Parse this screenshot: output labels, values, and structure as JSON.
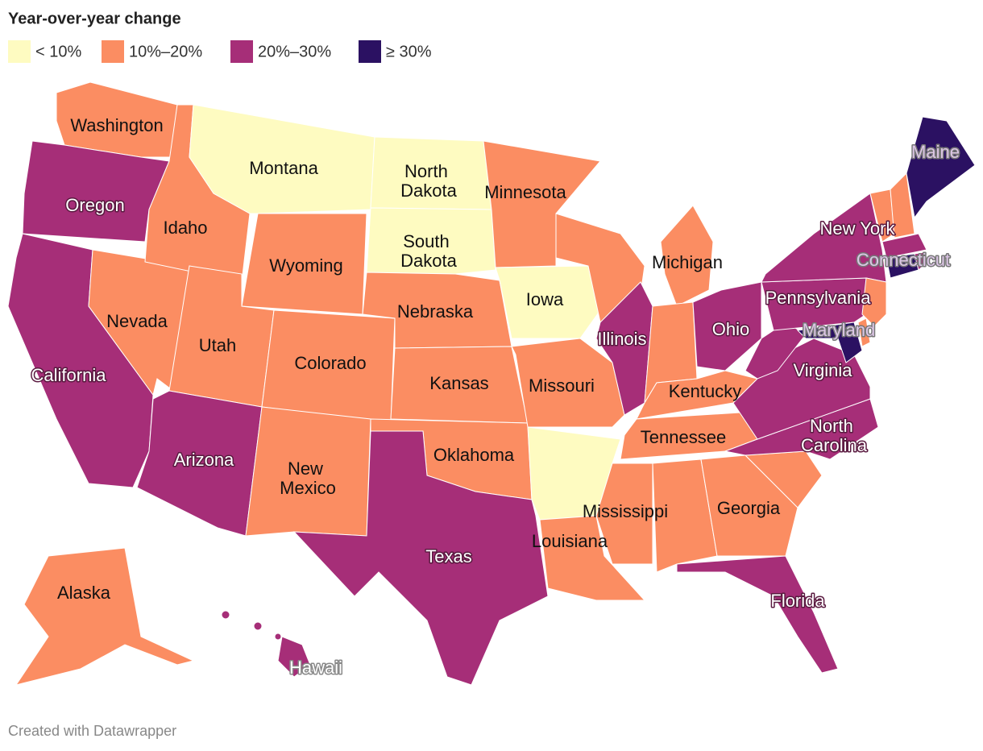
{
  "title": "Year-over-year change",
  "legend": [
    {
      "label": "< 10%",
      "color": "#fefbc1"
    },
    {
      "label": "10%–20%",
      "color": "#fb8d62"
    },
    {
      "label": "20%–30%",
      "color": "#a62e78"
    },
    {
      "label": "≥ 30%",
      "color": "#2b1162"
    }
  ],
  "states": [
    {
      "name": "Washington",
      "color": "#fb8d62"
    },
    {
      "name": "Oregon",
      "color": "#a62e78"
    },
    {
      "name": "California",
      "color": "#a62e78"
    },
    {
      "name": "Nevada",
      "color": "#fb8d62"
    },
    {
      "name": "Idaho",
      "color": "#fb8d62"
    },
    {
      "name": "Montana",
      "color": "#fefbc1"
    },
    {
      "name": "Wyoming",
      "color": "#fb8d62"
    },
    {
      "name": "Utah",
      "color": "#fb8d62"
    },
    {
      "name": "Colorado",
      "color": "#fb8d62"
    },
    {
      "name": "Arizona",
      "color": "#a62e78"
    },
    {
      "name": "New Mexico",
      "color": "#fb8d62"
    },
    {
      "name": "North Dakota",
      "color": "#fefbc1"
    },
    {
      "name": "South Dakota",
      "color": "#fefbc1"
    },
    {
      "name": "Nebraska",
      "color": "#fb8d62"
    },
    {
      "name": "Kansas",
      "color": "#fb8d62"
    },
    {
      "name": "Oklahoma",
      "color": "#fb8d62"
    },
    {
      "name": "Texas",
      "color": "#a62e78"
    },
    {
      "name": "Minnesota",
      "color": "#fb8d62"
    },
    {
      "name": "Iowa",
      "color": "#fefbc1"
    },
    {
      "name": "Missouri",
      "color": "#fb8d62"
    },
    {
      "name": null,
      "color": "#fefbc1"
    },
    {
      "name": "Louisiana",
      "color": "#fb8d62"
    },
    {
      "name": null,
      "color": "#fb8d62"
    },
    {
      "name": "Illinois",
      "color": "#a62e78"
    },
    {
      "name": "Michigan",
      "color": "#fb8d62"
    },
    {
      "name": null,
      "color": "#fb8d62"
    },
    {
      "name": "Ohio",
      "color": "#a62e78"
    },
    {
      "name": "Kentucky",
      "color": "#fb8d62"
    },
    {
      "name": "Tennessee",
      "color": "#fb8d62"
    },
    {
      "name": "Mississippi",
      "color": "#fb8d62"
    },
    {
      "name": null,
      "color": "#fb8d62"
    },
    {
      "name": "Georgia",
      "color": "#fb8d62"
    },
    {
      "name": "Florida",
      "color": "#a62e78"
    },
    {
      "name": null,
      "color": "#fb8d62"
    },
    {
      "name": "North Carolina",
      "color": "#a62e78"
    },
    {
      "name": "Virginia",
      "color": "#a62e78"
    },
    {
      "name": null,
      "color": "#a62e78"
    },
    {
      "name": "Pennsylvania",
      "color": "#a62e78"
    },
    {
      "name": "New York",
      "color": "#a62e78"
    },
    {
      "name": null,
      "color": "#fb8d62"
    },
    {
      "name": null,
      "color": "#fb8d62"
    },
    {
      "name": "Maine",
      "color": "#2b1162"
    },
    {
      "name": null,
      "color": "#a62e78"
    },
    {
      "name": "Connecticut",
      "color": "#2b1162"
    },
    {
      "name": null,
      "color": "#a62e78"
    },
    {
      "name": null,
      "color": "#fb8d62"
    },
    {
      "name": null,
      "color": "#fb8d62"
    },
    {
      "name": "Maryland",
      "color": "#2b1162"
    },
    {
      "name": "Alaska",
      "color": "#fb8d62"
    },
    {
      "name": "Hawaii",
      "color": "#a62e78"
    }
  ],
  "footer": "Created with Datawrapper"
}
